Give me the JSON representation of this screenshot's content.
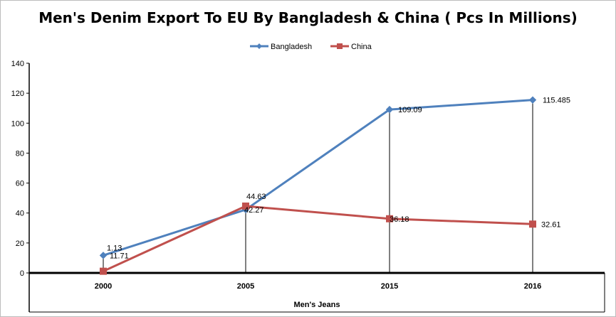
{
  "chart_data": {
    "type": "line",
    "title": "Men's Denim Export To EU By Bangladesh & China ( Pcs In Millions)",
    "xlabel": "Men's Jeans",
    "ylabel": "",
    "categories": [
      "2000",
      "2005",
      "2015",
      "2016"
    ],
    "ylim": [
      0,
      140
    ],
    "yticks": [
      0,
      20,
      40,
      60,
      80,
      100,
      120,
      140
    ],
    "grid": false,
    "legend": "top-center",
    "series": [
      {
        "name": "Bangladesh",
        "values": [
          11.71,
          42.27,
          109.09,
          115.485
        ],
        "labels": [
          "11.71",
          "42.27",
          "109.09",
          "115.485"
        ],
        "color": "#4f81bd",
        "marker": "diamond"
      },
      {
        "name": "China",
        "values": [
          1.13,
          44.63,
          36.18,
          32.61
        ],
        "labels": [
          "1.13",
          "44.63",
          "36.18",
          "32.61"
        ],
        "color": "#c0504d",
        "marker": "square"
      }
    ]
  }
}
